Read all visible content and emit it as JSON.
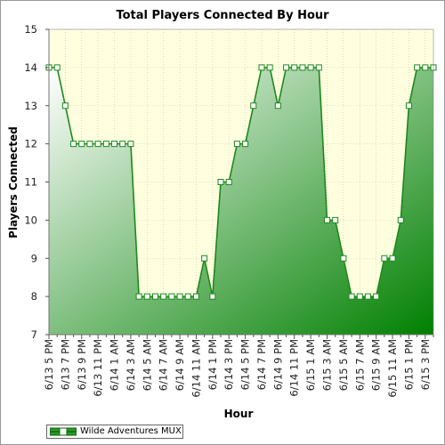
{
  "chart_data": {
    "type": "area",
    "title": "Total Players Connected By Hour",
    "xlabel": "Hour",
    "ylabel": "Players Connected",
    "ylim": [
      7,
      15
    ],
    "yticks": [
      7,
      8,
      9,
      10,
      11,
      12,
      13,
      14,
      15
    ],
    "grid": true,
    "legend_placement": "bottom-left",
    "x": [
      "6/13 5 PM",
      "6/13 6 PM",
      "6/13 7 PM",
      "6/13 8 PM",
      "6/13 9 PM",
      "6/13 10 PM",
      "6/13 11 PM",
      "6/14 12 AM",
      "6/14 1 AM",
      "6/14 2 AM",
      "6/14 3 AM",
      "6/14 4 AM",
      "6/14 5 AM",
      "6/14 6 AM",
      "6/14 7 AM",
      "6/14 8 AM",
      "6/14 9 AM",
      "6/14 10 AM",
      "6/14 11 AM",
      "6/14 12 PM",
      "6/14 1 PM",
      "6/14 2 PM",
      "6/14 3 PM",
      "6/14 4 PM",
      "6/14 5 PM",
      "6/14 6 PM",
      "6/14 7 PM",
      "6/14 8 PM",
      "6/14 9 PM",
      "6/14 10 PM",
      "6/14 11 PM",
      "6/15 12 AM",
      "6/15 1 AM",
      "6/15 2 AM",
      "6/15 3 AM",
      "6/15 4 AM",
      "6/15 5 AM",
      "6/15 6 AM",
      "6/15 7 AM",
      "6/15 8 AM",
      "6/15 9 AM",
      "6/15 10 AM",
      "6/15 11 AM",
      "6/15 12 PM",
      "6/15 1 PM",
      "6/15 2 PM",
      "6/15 3 PM",
      "6/15 4 PM"
    ],
    "xtick_labels": [
      "6/13 5 PM",
      "6/13 7 PM",
      "6/13 9 PM",
      "6/13 11 PM",
      "6/14 1 AM",
      "6/14 3 AM",
      "6/14 5 AM",
      "6/14 7 AM",
      "6/14 9 AM",
      "6/14 11 AM",
      "6/14 1 PM",
      "6/14 3 PM",
      "6/14 5 PM",
      "6/14 7 PM",
      "6/14 9 PM",
      "6/14 11 PM",
      "6/15 1 AM",
      "6/15 3 AM",
      "6/15 5 AM",
      "6/15 7 AM",
      "6/15 9 AM",
      "6/15 11 AM",
      "6/15 1 PM",
      "6/15 3 PM"
    ],
    "series": [
      {
        "name": "Wilde Adventures MUX",
        "color": "#1a8a1a",
        "fill_gradient": [
          "#ffffff",
          "#008000"
        ],
        "values": [
          14,
          14,
          13,
          12,
          12,
          12,
          12,
          12,
          12,
          12,
          12,
          8,
          8,
          8,
          8,
          8,
          8,
          8,
          8,
          9,
          8,
          11,
          11,
          12,
          12,
          13,
          14,
          14,
          13,
          14,
          14,
          14,
          14,
          14,
          10,
          10,
          9,
          8,
          8,
          8,
          8,
          9,
          9,
          10,
          13,
          14,
          14,
          14
        ]
      }
    ]
  },
  "colors": {
    "plot_background": "#ffffe0",
    "grid": "#c8c8a0",
    "line": "#1a8a1a"
  }
}
